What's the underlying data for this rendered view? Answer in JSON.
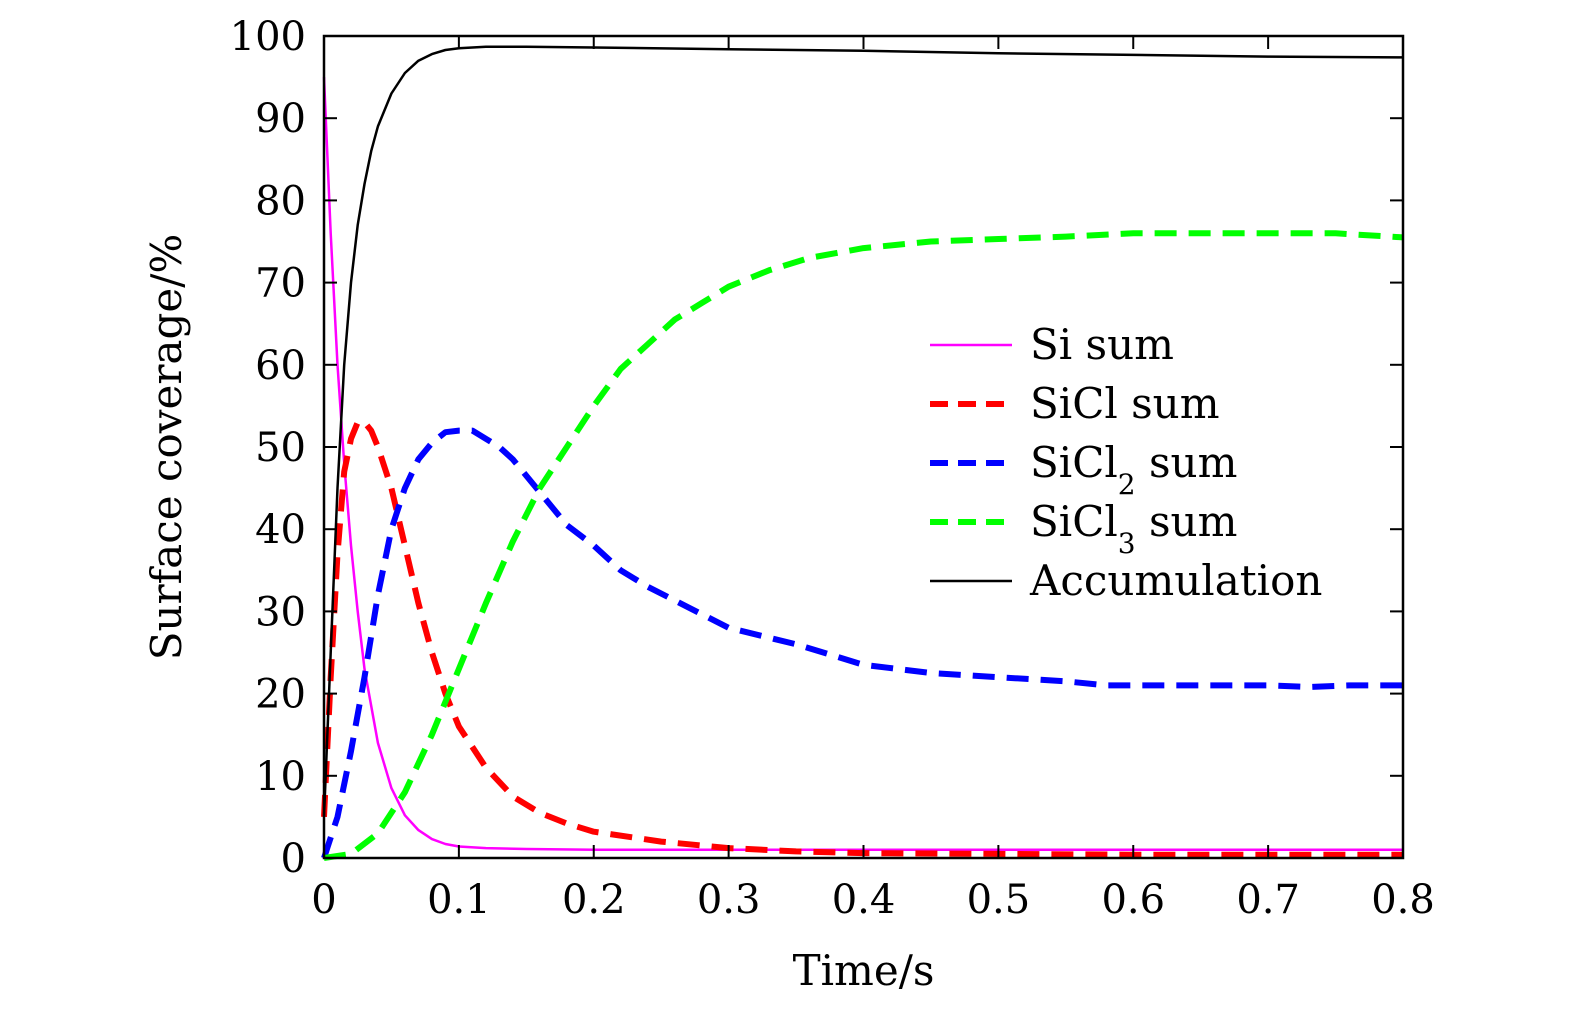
{
  "chart_data": {
    "type": "line",
    "xlabel": "Time/s",
    "ylabel": "Surface coverage/%",
    "xlim": [
      0,
      0.8
    ],
    "ylim": [
      0,
      100
    ],
    "xticks": [
      "0",
      "0.1",
      "0.2",
      "0.3",
      "0.4",
      "0.5",
      "0.6",
      "0.7",
      "0.8"
    ],
    "yticks": [
      "0",
      "10",
      "20",
      "30",
      "40",
      "50",
      "60",
      "70",
      "80",
      "90",
      "100"
    ],
    "grid": false,
    "legend_position": "center-right",
    "series": [
      {
        "name": "Si sum",
        "label_parts": [
          {
            "text": "Si sum",
            "sub": false
          }
        ],
        "color": "#ff00ff",
        "style": "solid",
        "x": [
          0,
          0.005,
          0.01,
          0.015,
          0.02,
          0.025,
          0.03,
          0.04,
          0.05,
          0.06,
          0.07,
          0.08,
          0.09,
          0.1,
          0.12,
          0.15,
          0.2,
          0.3,
          0.4,
          0.5,
          0.6,
          0.7,
          0.8
        ],
        "values": [
          95,
          76,
          60,
          48,
          38,
          30,
          23,
          14,
          8.5,
          5.2,
          3.4,
          2.3,
          1.7,
          1.4,
          1.2,
          1.1,
          1.0,
          1.0,
          1.0,
          1.0,
          1.0,
          1.0,
          1.0
        ]
      },
      {
        "name": "SiCl sum",
        "label_parts": [
          {
            "text": "SiCl sum",
            "sub": false
          }
        ],
        "color": "#ff0000",
        "style": "dashed",
        "x": [
          0,
          0.005,
          0.01,
          0.015,
          0.02,
          0.025,
          0.03,
          0.035,
          0.04,
          0.05,
          0.06,
          0.07,
          0.08,
          0.09,
          0.1,
          0.12,
          0.14,
          0.16,
          0.18,
          0.2,
          0.25,
          0.3,
          0.35,
          0.4,
          0.5,
          0.6,
          0.7,
          0.8
        ],
        "values": [
          5,
          22,
          37,
          47,
          51,
          53,
          53,
          52,
          50,
          45,
          38,
          31,
          25,
          20,
          16,
          11,
          7.5,
          5.5,
          4.2,
          3.2,
          2.0,
          1.2,
          0.8,
          0.6,
          0.5,
          0.4,
          0.4,
          0.4
        ]
      },
      {
        "name": "SiCl2 sum",
        "label_parts": [
          {
            "text": "SiCl",
            "sub": false
          },
          {
            "text": "2",
            "sub": true
          },
          {
            "text": " sum",
            "sub": false
          }
        ],
        "color": "#0000ff",
        "style": "dashed",
        "x": [
          0,
          0.01,
          0.02,
          0.03,
          0.04,
          0.05,
          0.06,
          0.07,
          0.08,
          0.09,
          0.1,
          0.11,
          0.12,
          0.13,
          0.14,
          0.16,
          0.18,
          0.2,
          0.22,
          0.24,
          0.27,
          0.3,
          0.35,
          0.4,
          0.45,
          0.5,
          0.55,
          0.58,
          0.6,
          0.65,
          0.7,
          0.73,
          0.76,
          0.8
        ],
        "values": [
          0,
          5,
          13,
          22,
          32,
          40,
          45,
          48.5,
          50.5,
          51.8,
          52,
          52,
          51,
          50,
          48.5,
          44.5,
          40.5,
          38,
          35,
          33,
          30.5,
          28,
          26,
          23.5,
          22.5,
          22,
          21.5,
          21,
          21,
          21,
          21,
          20.8,
          21,
          21
        ]
      },
      {
        "name": "SiCl3 sum",
        "label_parts": [
          {
            "text": "SiCl",
            "sub": false
          },
          {
            "text": "3",
            "sub": true
          },
          {
            "text": " sum",
            "sub": false
          }
        ],
        "color": "#00ff00",
        "style": "dashed",
        "x": [
          0,
          0.02,
          0.04,
          0.06,
          0.08,
          0.1,
          0.12,
          0.14,
          0.16,
          0.18,
          0.2,
          0.22,
          0.24,
          0.26,
          0.28,
          0.3,
          0.33,
          0.36,
          0.4,
          0.45,
          0.5,
          0.55,
          0.6,
          0.65,
          0.7,
          0.75,
          0.8
        ],
        "values": [
          0,
          0.5,
          3,
          8,
          15,
          23,
          31,
          38.5,
          45,
          50,
          55,
          59.5,
          62.5,
          65.5,
          67.5,
          69.5,
          71.5,
          73,
          74.2,
          75,
          75.3,
          75.6,
          76,
          76,
          76,
          76,
          75.5
        ]
      },
      {
        "name": "Accumulation",
        "label_parts": [
          {
            "text": "Accumulation",
            "sub": false
          }
        ],
        "color": "#000000",
        "style": "solid",
        "x": [
          0,
          0.005,
          0.01,
          0.015,
          0.02,
          0.025,
          0.03,
          0.035,
          0.04,
          0.05,
          0.06,
          0.07,
          0.08,
          0.09,
          0.1,
          0.12,
          0.15,
          0.2,
          0.3,
          0.4,
          0.5,
          0.6,
          0.7,
          0.8
        ],
        "values": [
          5,
          25,
          45,
          60,
          70,
          77,
          82,
          86,
          89,
          93,
          95.5,
          97,
          97.8,
          98.3,
          98.5,
          98.7,
          98.7,
          98.6,
          98.4,
          98.2,
          97.9,
          97.7,
          97.5,
          97.4
        ]
      }
    ]
  }
}
